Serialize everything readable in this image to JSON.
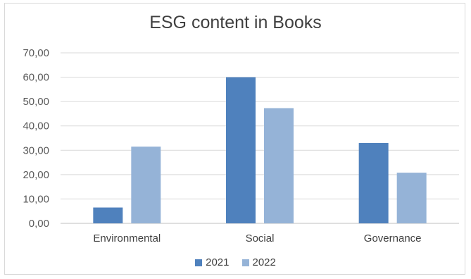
{
  "chart_data": {
    "type": "bar",
    "title": "ESG content in Books",
    "categories": [
      "Environmental",
      "Social",
      "Governance"
    ],
    "series": [
      {
        "name": "2021",
        "values": [
          6.5,
          60.0,
          33.0
        ],
        "color": "#4f81bd"
      },
      {
        "name": "2022",
        "values": [
          31.5,
          47.3,
          20.8
        ],
        "color": "#95b3d7"
      }
    ],
    "y_ticks": [
      "0,00",
      "10,00",
      "20,00",
      "30,00",
      "40,00",
      "50,00",
      "60,00",
      "70,00"
    ],
    "ylim": [
      0,
      70
    ],
    "grid": true,
    "legend_position": "bottom",
    "xlabel": "",
    "ylabel": ""
  }
}
